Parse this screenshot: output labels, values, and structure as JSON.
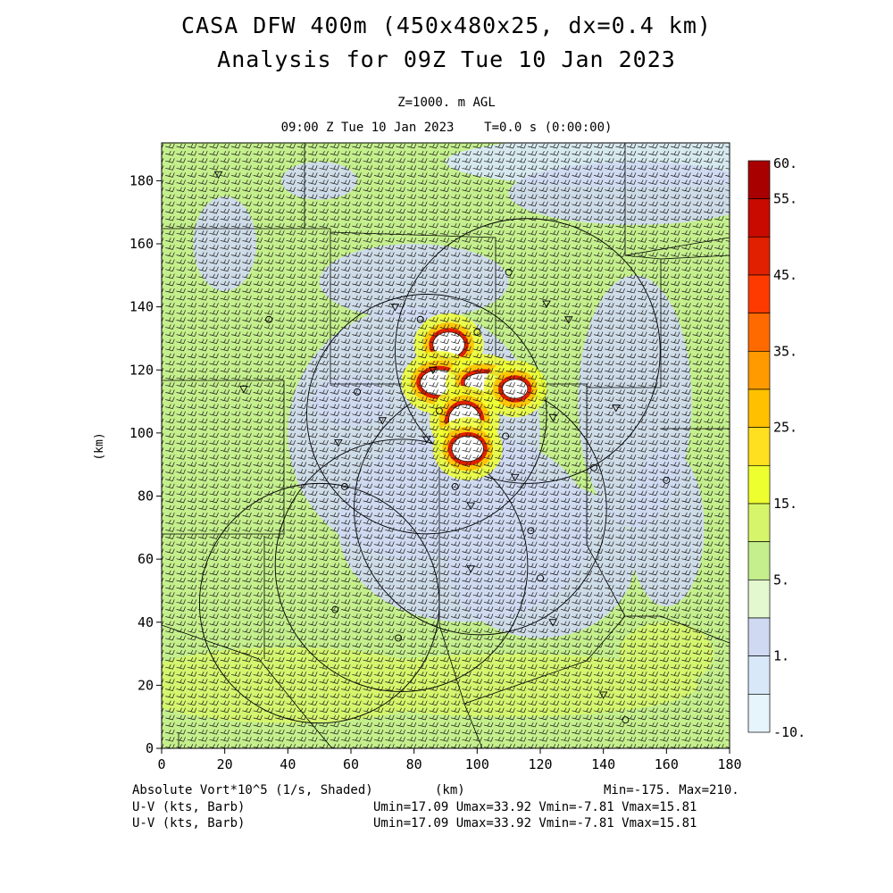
{
  "header": {
    "title_line1": "CASA DFW 400m (450x480x25, dx=0.4 km)",
    "title_line2": "Analysis for 09Z Tue 10 Jan 2023",
    "level": "Z=1000. m AGL",
    "time": "09:00 Z Tue 10 Jan 2023    T=0.0 s (0:00:00)"
  },
  "footer": {
    "field_label": "Absolute Vort*10^5 (1/s, Shaded)",
    "x_unit": "(km)",
    "minmax": "Min=-175. Max=210.",
    "wind1_label": "U-V (kts, Barb)",
    "wind1_stats": "Umin=17.09 Umax=33.92 Vmin=-7.81 Vmax=15.81",
    "wind2_label": "U-V (kts, Barb)",
    "wind2_stats": "Umin=17.09 Umax=33.92 Vmin=-7.81 Vmax=15.81"
  },
  "colors": {
    "bg_green": "#c4ef8c",
    "light_blue": "#cfd9f2",
    "white_core": "#ffffff",
    "outline": "#000000"
  },
  "chart_data": {
    "type": "heatmap",
    "xlabel": "(km)",
    "ylabel": "(km)",
    "xlim": [
      0,
      180
    ],
    "ylim": [
      0,
      192
    ],
    "x_ticks": [
      0,
      20,
      40,
      60,
      80,
      100,
      120,
      140,
      160,
      180
    ],
    "y_ticks": [
      0,
      20,
      40,
      60,
      80,
      100,
      120,
      140,
      160,
      180
    ],
    "colorbar": {
      "labels": [
        "60.",
        "55.",
        "45.",
        "35.",
        "25.",
        "15.",
        "5.",
        "1.",
        "-10."
      ],
      "bins": [
        {
          "from": 55,
          "to": 60,
          "color": "#a80000"
        },
        {
          "from": 50,
          "to": 55,
          "color": "#c80a00"
        },
        {
          "from": 45,
          "to": 50,
          "color": "#e02000"
        },
        {
          "from": 40,
          "to": 45,
          "color": "#ff3a00"
        },
        {
          "from": 35,
          "to": 40,
          "color": "#ff6a00"
        },
        {
          "from": 30,
          "to": 35,
          "color": "#ff9a00"
        },
        {
          "from": 25,
          "to": 30,
          "color": "#ffc000"
        },
        {
          "from": 20,
          "to": 25,
          "color": "#ffe020"
        },
        {
          "from": 15,
          "to": 20,
          "color": "#eeff30"
        },
        {
          "from": 10,
          "to": 15,
          "color": "#d6f56a"
        },
        {
          "from": 5,
          "to": 10,
          "color": "#c4ef8c"
        },
        {
          "from": 1,
          "to": 5,
          "color": "#e4f8cf"
        },
        {
          "from": -2,
          "to": 1,
          "color": "#cfd9f2"
        },
        {
          "from": -6,
          "to": -2,
          "color": "#d8e8f8"
        },
        {
          "from": -10,
          "to": -6,
          "color": "#e6f4fc"
        }
      ]
    },
    "radar_rings": [
      {
        "cx": 116,
        "cy": 126,
        "r": 42
      },
      {
        "cx": 84,
        "cy": 106,
        "r": 38
      },
      {
        "cx": 101,
        "cy": 76,
        "r": 40
      },
      {
        "cx": 50,
        "cy": 46,
        "r": 38
      },
      {
        "cx": 76,
        "cy": 58,
        "r": 40
      }
    ],
    "reflectivity_cores": [
      {
        "x": 91,
        "y": 128,
        "rx": 5,
        "ry": 4
      },
      {
        "x": 88,
        "y": 116,
        "rx": 6,
        "ry": 4
      },
      {
        "x": 102,
        "y": 116,
        "rx": 6,
        "ry": 3
      },
      {
        "x": 112,
        "y": 114,
        "rx": 4,
        "ry": 3
      },
      {
        "x": 96,
        "y": 104,
        "rx": 5,
        "ry": 5
      },
      {
        "x": 97,
        "y": 95,
        "rx": 5,
        "ry": 4
      }
    ],
    "stations": [
      {
        "x": 18,
        "y": 182
      },
      {
        "x": 34,
        "y": 136
      },
      {
        "x": 26,
        "y": 114
      },
      {
        "x": 62,
        "y": 113
      },
      {
        "x": 56,
        "y": 97
      },
      {
        "x": 58,
        "y": 83
      },
      {
        "x": 74,
        "y": 140
      },
      {
        "x": 82,
        "y": 136
      },
      {
        "x": 86,
        "y": 120
      },
      {
        "x": 88,
        "y": 107
      },
      {
        "x": 84,
        "y": 98
      },
      {
        "x": 93,
        "y": 83
      },
      {
        "x": 98,
        "y": 77
      },
      {
        "x": 109,
        "y": 99
      },
      {
        "x": 112,
        "y": 86
      },
      {
        "x": 117,
        "y": 69
      },
      {
        "x": 124,
        "y": 105
      },
      {
        "x": 137,
        "y": 89
      },
      {
        "x": 144,
        "y": 108
      },
      {
        "x": 160,
        "y": 85
      },
      {
        "x": 129,
        "y": 136
      },
      {
        "x": 110,
        "y": 151
      },
      {
        "x": 122,
        "y": 141
      },
      {
        "x": 55,
        "y": 44
      },
      {
        "x": 98,
        "y": 57
      },
      {
        "x": 120,
        "y": 54
      },
      {
        "x": 124,
        "y": 40
      },
      {
        "x": 75,
        "y": 35
      },
      {
        "x": 140,
        "y": 17
      },
      {
        "x": 147,
        "y": 9
      },
      {
        "x": 70,
        "y": 104
      },
      {
        "x": 100,
        "y": 132
      }
    ]
  }
}
